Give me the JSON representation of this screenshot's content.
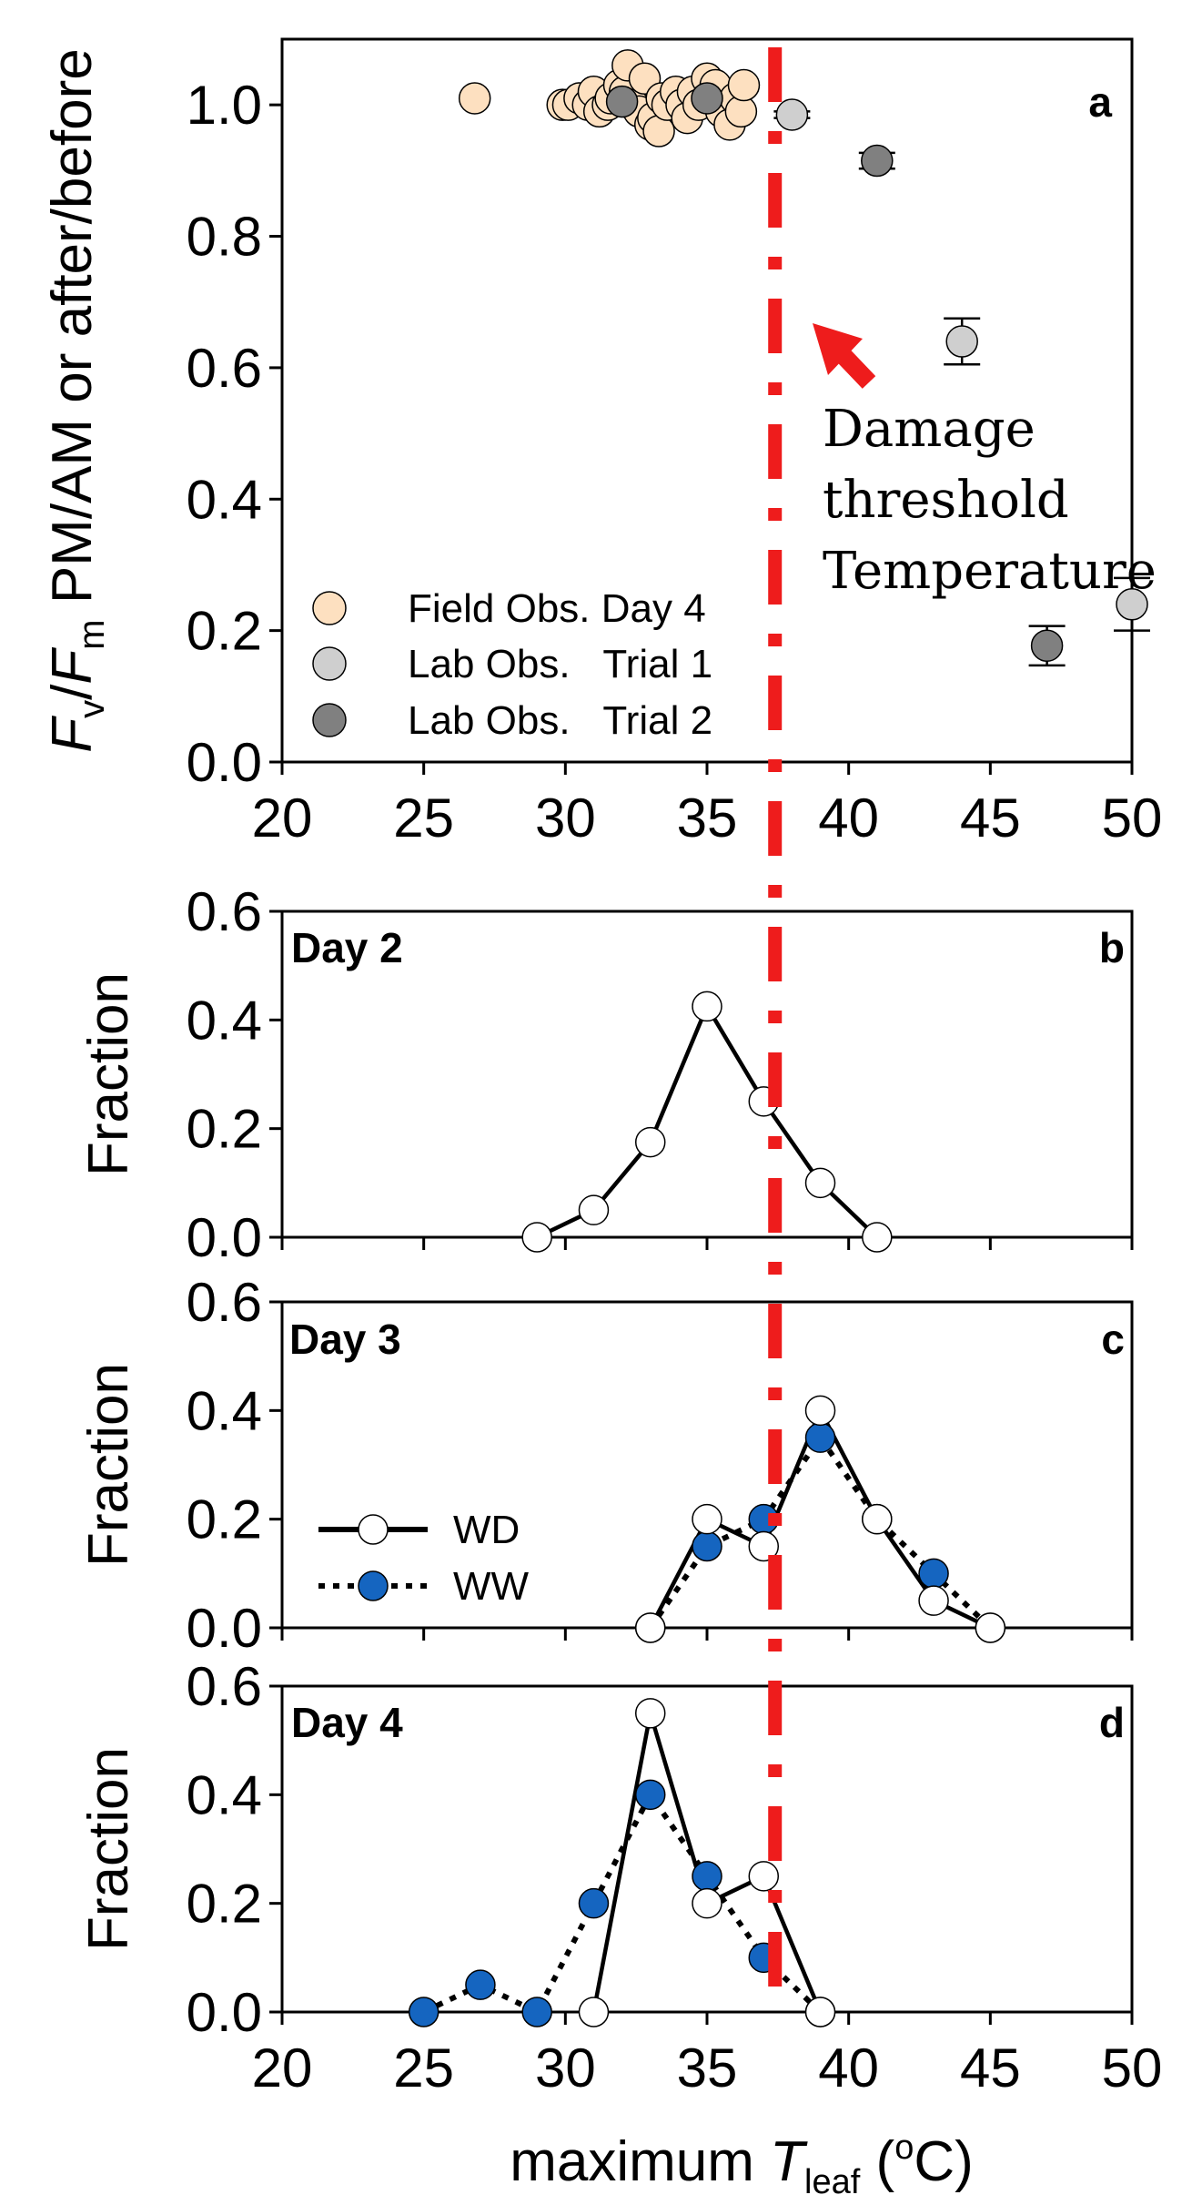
{
  "chart_data": [
    {
      "panel": "a",
      "type": "scatter",
      "ylabel": {
        "F1": "F",
        "sub1": "v",
        "slash": "/",
        "F2": "F",
        "sub2": "m",
        "rest": " PM/AM or after/before"
      },
      "xlim": [
        20,
        50
      ],
      "ylim": [
        0,
        1.1
      ],
      "xticks": [
        20,
        25,
        30,
        35,
        40,
        45,
        50
      ],
      "yticks": [
        "0.0",
        "0.2",
        "0.4",
        "0.6",
        "0.8",
        "1.0"
      ],
      "ytick_values": [
        0,
        0.2,
        0.4,
        0.6,
        0.8,
        1.0
      ],
      "legend_position": "bottom-left",
      "series": [
        {
          "name": "Field Obs. Day 4",
          "color": "#fde0c0",
          "points": [
            [
              26.8,
              1.01
            ],
            [
              29.9,
              1.0
            ],
            [
              30.1,
              1.0
            ],
            [
              30.5,
              1.01
            ],
            [
              30.8,
              1.0
            ],
            [
              31.0,
              1.02
            ],
            [
              31.2,
              0.99
            ],
            [
              31.5,
              1.0
            ],
            [
              31.6,
              1.01
            ],
            [
              31.9,
              1.03
            ],
            [
              32.1,
              1.02
            ],
            [
              32.2,
              1.06
            ],
            [
              32.4,
              1.0
            ],
            [
              32.6,
              0.99
            ],
            [
              32.8,
              1.04
            ],
            [
              33.0,
              0.97
            ],
            [
              33.1,
              0.98
            ],
            [
              33.3,
              0.96
            ],
            [
              33.4,
              1.01
            ],
            [
              33.6,
              1.0
            ],
            [
              33.9,
              1.02
            ],
            [
              34.1,
              1.0
            ],
            [
              34.3,
              0.98
            ],
            [
              34.5,
              1.02
            ],
            [
              34.7,
              1.0
            ],
            [
              35.0,
              1.04
            ],
            [
              35.3,
              1.03
            ],
            [
              35.5,
              0.99
            ],
            [
              35.8,
              0.97
            ],
            [
              36.0,
              1.01
            ],
            [
              36.2,
              0.99
            ],
            [
              36.3,
              1.03
            ]
          ]
        },
        {
          "name": "Lab Obs.   Trial 1",
          "color": "#cfcfcf",
          "points": [
            [
              38.0,
              0.985
            ],
            [
              44.0,
              0.64
            ],
            [
              50.0,
              0.24
            ]
          ],
          "errors": [
            0.005,
            0.035,
            0.04
          ]
        },
        {
          "name": "Lab Obs.   Trial 2",
          "color": "#808080",
          "points": [
            [
              32.0,
              1.005
            ],
            [
              35.0,
              1.01
            ],
            [
              41.0,
              0.915
            ],
            [
              47.0,
              0.177
            ]
          ],
          "errors": [
            0.005,
            0.005,
            0.012,
            0.03
          ]
        }
      ],
      "threshold_x": 37.4,
      "annotation": [
        "Damage",
        "threshold",
        "Temperature"
      ],
      "panel_letter": "a"
    },
    {
      "panel": "b",
      "type": "line",
      "title": "Day 2",
      "ylabel": "Fraction",
      "xlim": [
        20,
        50
      ],
      "ylim": [
        0,
        0.6
      ],
      "yticks": [
        "0.0",
        "0.2",
        "0.4",
        "0.6"
      ],
      "ytick_values": [
        0,
        0.2,
        0.4,
        0.6
      ],
      "series": [
        {
          "name": "WD",
          "style": "solid",
          "marker_color": "#ffffff",
          "points": [
            [
              29,
              0.0
            ],
            [
              31,
              0.05
            ],
            [
              33,
              0.175
            ],
            [
              35,
              0.425
            ],
            [
              37,
              0.25
            ],
            [
              39,
              0.1
            ],
            [
              41,
              0.0
            ]
          ]
        }
      ],
      "panel_letter": "b"
    },
    {
      "panel": "c",
      "type": "line",
      "title": "Day 3",
      "ylabel": "Fraction",
      "xlim": [
        20,
        50
      ],
      "ylim": [
        0,
        0.6
      ],
      "yticks": [
        "0.0",
        "0.2",
        "0.4",
        "0.6"
      ],
      "ytick_values": [
        0,
        0.2,
        0.4,
        0.6
      ],
      "legend_position": "bottom-left",
      "series": [
        {
          "name": "WD",
          "style": "solid",
          "marker_color": "#ffffff",
          "points": [
            [
              33,
              0.0
            ],
            [
              35,
              0.2
            ],
            [
              37,
              0.15
            ],
            [
              39,
              0.4
            ],
            [
              41,
              0.2
            ],
            [
              43,
              0.05
            ],
            [
              45,
              0.0
            ]
          ]
        },
        {
          "name": "WW",
          "style": "dotted",
          "marker_color": "#1565c0",
          "points": [
            [
              33,
              0.0
            ],
            [
              35,
              0.15
            ],
            [
              37,
              0.2
            ],
            [
              39,
              0.35
            ],
            [
              41,
              0.2
            ],
            [
              43,
              0.1
            ],
            [
              45,
              0.0
            ]
          ]
        }
      ],
      "panel_letter": "c"
    },
    {
      "panel": "d",
      "type": "line",
      "title": "Day 4",
      "ylabel": "Fraction",
      "xlabel_parts": {
        "pre": "maximum ",
        "T": "T",
        "sub": "leaf",
        "open": " (",
        "sup": "o",
        "post": "C)"
      },
      "xlim": [
        20,
        50
      ],
      "ylim": [
        0,
        0.6
      ],
      "xticks": [
        20,
        25,
        30,
        35,
        40,
        45,
        50
      ],
      "yticks": [
        "0.0",
        "0.2",
        "0.4",
        "0.6"
      ],
      "ytick_values": [
        0,
        0.2,
        0.4,
        0.6
      ],
      "series": [
        {
          "name": "WD",
          "style": "solid",
          "marker_color": "#ffffff",
          "points": [
            [
              31,
              0.0
            ],
            [
              33,
              0.55
            ],
            [
              35,
              0.2
            ],
            [
              37,
              0.25
            ],
            [
              39,
              0.0
            ]
          ]
        },
        {
          "name": "WW",
          "style": "dotted",
          "marker_color": "#1565c0",
          "points": [
            [
              25,
              0.0
            ],
            [
              27,
              0.05
            ],
            [
              29,
              0.0
            ],
            [
              31,
              0.2
            ],
            [
              33,
              0.4
            ],
            [
              35,
              0.25
            ],
            [
              37,
              0.1
            ],
            [
              39,
              0.0
            ]
          ]
        }
      ],
      "panel_letter": "d"
    }
  ],
  "colors": {
    "threshold_line": "#ee1c1c",
    "ww_marker": "#1565c0"
  }
}
